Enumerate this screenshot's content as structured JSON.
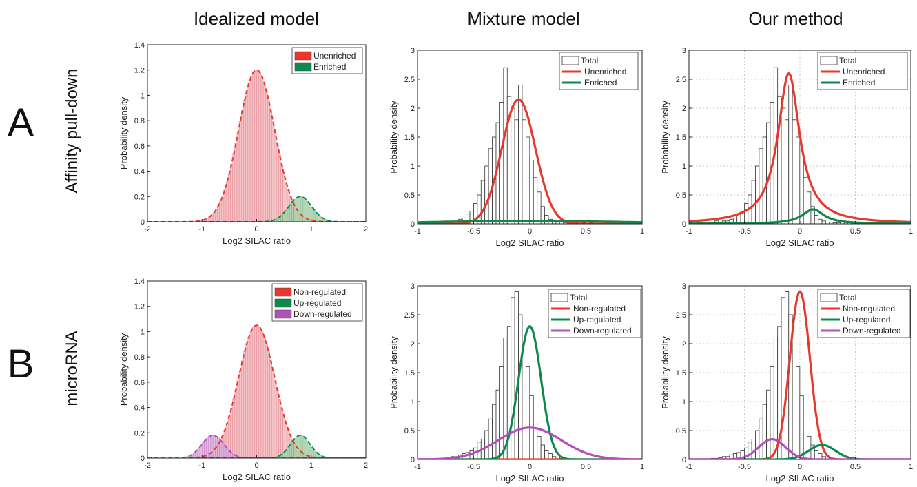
{
  "figure": {
    "column_titles": [
      "Idealized model",
      "Mixture model",
      "Our method"
    ],
    "row_letters": [
      "A",
      "B"
    ],
    "row_labels": [
      "Affinity pull-down",
      "microRNA"
    ]
  },
  "colors": {
    "red": "#e8372c",
    "green": "#0d8a4b",
    "purple": "#b34fb8",
    "red_fill": "#f2b9bd",
    "green_fill": "#a7cfaa",
    "purple_fill": "#dcb3dc"
  },
  "chart_data": [
    {
      "id": "A-idealized",
      "type": "bar",
      "style": "idealized",
      "xlabel": "Log2 SILAC ratio",
      "ylabel": "Probability density",
      "xlim": [
        -2,
        2
      ],
      "ylim": [
        0,
        1.4
      ],
      "xticks": [
        -2,
        -1,
        0,
        1,
        2
      ],
      "yticks": [
        0,
        0.2,
        0.4,
        0.6,
        0.8,
        1,
        1.2,
        1.4
      ],
      "ytick_labels": [
        "0",
        "0.2",
        "0.4",
        "0.6",
        "0.8",
        "1",
        "1.2",
        "1.4"
      ],
      "grid": false,
      "legend": "top-right",
      "components": [
        {
          "name": "Unenriched",
          "color": "red",
          "mu": 0.0,
          "sigma": 0.33,
          "peak": 1.2
        },
        {
          "name": "Enriched",
          "color": "green",
          "mu": 0.8,
          "sigma": 0.21,
          "peak": 0.2
        }
      ]
    },
    {
      "id": "A-mixture",
      "type": "line",
      "style": "fit",
      "xlabel": "Log2 SILAC ratio",
      "ylabel": "Probability density",
      "xlim": [
        -1,
        1
      ],
      "ylim": [
        0,
        3
      ],
      "xticks": [
        -1,
        -0.5,
        0,
        0.5,
        1
      ],
      "xtick_labels": [
        "-1",
        "-0.5",
        "0",
        "0.5",
        "1"
      ],
      "yticks": [
        0,
        0.5,
        1,
        1.5,
        2,
        2.5,
        3
      ],
      "ytick_labels": [
        "0",
        "0.5",
        "1",
        "1.5",
        "2",
        "2.5",
        "3"
      ],
      "grid": false,
      "legend": "top-right",
      "histogram": {
        "name": "Total",
        "start": -1,
        "width": 0.0333,
        "values": [
          0.02,
          0.0,
          0.02,
          0.02,
          0.0,
          0.02,
          0.0,
          0.05,
          0.02,
          0.05,
          0.05,
          0.08,
          0.1,
          0.17,
          0.22,
          0.35,
          0.5,
          0.75,
          1.0,
          1.3,
          1.5,
          1.75,
          2.1,
          2.7,
          2.2,
          2.0,
          1.8,
          2.4,
          1.8,
          1.5,
          1.1,
          0.8,
          0.55,
          0.3,
          0.15,
          0.08,
          0.05,
          0.03,
          0.0,
          0.02,
          0.02,
          0.0,
          0.02,
          0.0,
          0.02,
          0.0,
          0.02,
          0.0,
          0.03,
          0.0,
          0.03,
          0.0,
          0.0,
          0.0,
          0.0,
          0.0,
          0.0,
          0.0,
          0.0,
          0.0
        ]
      },
      "curves": [
        {
          "name": "Unenriched",
          "color": "red",
          "kind": "gauss",
          "mu": -0.1,
          "sigma": 0.15,
          "peak": 2.15
        },
        {
          "name": "Enriched",
          "color": "green",
          "kind": "gauss",
          "mu": 0.0,
          "sigma": 0.9,
          "peak": 0.05
        }
      ]
    },
    {
      "id": "A-ours",
      "type": "line",
      "style": "fit",
      "xlabel": "Log2 SILAC ratio",
      "ylabel": "Probability density",
      "xlim": [
        -1,
        1
      ],
      "ylim": [
        0,
        3
      ],
      "xticks": [
        -1,
        -0.5,
        0,
        0.5,
        1
      ],
      "xtick_labels": [
        "-1",
        "-0.5",
        "0",
        "0.5",
        "1"
      ],
      "yticks": [
        0,
        0.5,
        1,
        1.5,
        2,
        2.5,
        3
      ],
      "ytick_labels": [
        "0",
        "0.5",
        "1",
        "1.5",
        "2",
        "2.5",
        "3"
      ],
      "grid": true,
      "legend": "top-right",
      "histogram": {
        "name": "Total",
        "start": -1,
        "width": 0.0333,
        "values": [
          0.02,
          0.0,
          0.02,
          0.02,
          0.0,
          0.02,
          0.0,
          0.05,
          0.02,
          0.05,
          0.05,
          0.08,
          0.1,
          0.17,
          0.22,
          0.35,
          0.5,
          0.75,
          1.0,
          1.3,
          1.5,
          1.75,
          2.1,
          2.7,
          2.2,
          2.0,
          1.8,
          2.4,
          1.8,
          1.5,
          1.1,
          0.8,
          0.55,
          0.3,
          0.15,
          0.08,
          0.05,
          0.03,
          0.0,
          0.02,
          0.02,
          0.0,
          0.02,
          0.0,
          0.02,
          0.0,
          0.02,
          0.0,
          0.03,
          0.0,
          0.03,
          0.0,
          0.0,
          0.0,
          0.0,
          0.0,
          0.0,
          0.0,
          0.0,
          0.0
        ]
      },
      "curves": [
        {
          "name": "Unenriched",
          "color": "red",
          "kind": "cauchy",
          "mu": -0.1,
          "gamma": 0.12,
          "peak": 2.6
        },
        {
          "name": "Enriched",
          "color": "green",
          "kind": "cauchy",
          "mu": 0.12,
          "gamma": 0.12,
          "peak": 0.25
        }
      ]
    },
    {
      "id": "B-idealized",
      "type": "bar",
      "style": "idealized",
      "xlabel": "Log2 SILAC ratio",
      "ylabel": "Probability density",
      "xlim": [
        -2,
        2
      ],
      "ylim": [
        0,
        1.4
      ],
      "xticks": [
        -2,
        -1,
        0,
        1,
        2
      ],
      "yticks": [
        0,
        0.2,
        0.4,
        0.6,
        0.8,
        1,
        1.2,
        1.4
      ],
      "ytick_labels": [
        "0",
        "0.2",
        "0.4",
        "0.6",
        "0.8",
        "1",
        "1.2",
        "1.4"
      ],
      "grid": false,
      "legend": "top-right",
      "components": [
        {
          "name": "Non-regulated",
          "color": "red",
          "mu": 0.0,
          "sigma": 0.33,
          "peak": 1.05
        },
        {
          "name": "Up-regulated",
          "color": "green",
          "mu": 0.8,
          "sigma": 0.18,
          "peak": 0.18
        },
        {
          "name": "Down-regulated",
          "color": "purple",
          "mu": -0.8,
          "sigma": 0.2,
          "peak": 0.18
        }
      ]
    },
    {
      "id": "B-mixture",
      "type": "line",
      "style": "fit",
      "xlabel": "Log2 SILAC ratio",
      "ylabel": "Probability density",
      "xlim": [
        -1,
        1
      ],
      "ylim": [
        0,
        3
      ],
      "xticks": [
        -1,
        -0.5,
        0,
        0.5,
        1
      ],
      "xtick_labels": [
        "-1",
        "-0.5",
        "0",
        "0.5",
        "1"
      ],
      "yticks": [
        0,
        0.5,
        1,
        1.5,
        2,
        2.5,
        3
      ],
      "ytick_labels": [
        "0",
        "0.5",
        "1",
        "1.5",
        "2",
        "2.5",
        "3"
      ],
      "grid": false,
      "legend": "top-right",
      "histogram": {
        "name": "Total",
        "start": -1,
        "width": 0.0333,
        "values": [
          0.0,
          0.0,
          0.0,
          0.0,
          0.0,
          0.0,
          0.02,
          0.02,
          0.03,
          0.05,
          0.05,
          0.08,
          0.1,
          0.12,
          0.15,
          0.2,
          0.3,
          0.35,
          0.5,
          0.7,
          0.95,
          1.2,
          1.6,
          2.1,
          2.3,
          2.8,
          2.9,
          2.5,
          2.1,
          1.6,
          1.1,
          0.65,
          0.4,
          0.25,
          0.15,
          0.1,
          0.05,
          0.04,
          0.02,
          0.02,
          0.0,
          0.0,
          0.0,
          0.0,
          0.0,
          0.0,
          0.0,
          0.0,
          0.0,
          0.0,
          0.0,
          0.0,
          0.0,
          0.0,
          0.0,
          0.0,
          0.0,
          0.0,
          0.0,
          0.0
        ]
      },
      "curves": [
        {
          "name": "Non-regulated",
          "color": "red",
          "kind": "gauss",
          "mu": 0.0,
          "sigma": 0.9,
          "peak": 0.0
        },
        {
          "name": "Up-regulated",
          "color": "green",
          "kind": "gauss",
          "mu": 0.0,
          "sigma": 0.1,
          "peak": 2.3
        },
        {
          "name": "Down-regulated",
          "color": "purple",
          "kind": "gauss",
          "mu": 0.0,
          "sigma": 0.28,
          "peak": 0.55
        }
      ]
    },
    {
      "id": "B-ours",
      "type": "line",
      "style": "fit",
      "xlabel": "Log2 SILAC ratio",
      "ylabel": "Probability density",
      "xlim": [
        -1,
        1
      ],
      "ylim": [
        0,
        3
      ],
      "xticks": [
        -1,
        -0.5,
        0,
        0.5,
        1
      ],
      "xtick_labels": [
        "-1",
        "-0.5",
        "0",
        "0.5",
        "1"
      ],
      "yticks": [
        0,
        0.5,
        1,
        1.5,
        2,
        2.5,
        3
      ],
      "ytick_labels": [
        "0",
        "0.5",
        "1",
        "1.5",
        "2",
        "2.5",
        "3"
      ],
      "grid": true,
      "legend": "top-right",
      "histogram": {
        "name": "Total",
        "start": -1,
        "width": 0.0333,
        "values": [
          0.0,
          0.0,
          0.0,
          0.0,
          0.0,
          0.0,
          0.02,
          0.02,
          0.03,
          0.05,
          0.05,
          0.08,
          0.1,
          0.12,
          0.15,
          0.2,
          0.3,
          0.35,
          0.5,
          0.7,
          0.95,
          1.2,
          1.6,
          2.1,
          2.3,
          2.8,
          2.9,
          2.5,
          2.1,
          1.6,
          1.1,
          0.65,
          0.4,
          0.25,
          0.15,
          0.1,
          0.05,
          0.04,
          0.02,
          0.02,
          0.0,
          0.0,
          0.0,
          0.0,
          0.0,
          0.0,
          0.0,
          0.0,
          0.0,
          0.0,
          0.0,
          0.0,
          0.0,
          0.0,
          0.0,
          0.0,
          0.0,
          0.0,
          0.0,
          0.0
        ]
      },
      "curves": [
        {
          "name": "Non-regulated",
          "color": "red",
          "kind": "gauss",
          "mu": 0.0,
          "sigma": 0.09,
          "peak": 2.9
        },
        {
          "name": "Up-regulated",
          "color": "green",
          "kind": "gauss",
          "mu": 0.2,
          "sigma": 0.12,
          "peak": 0.25
        },
        {
          "name": "Down-regulated",
          "color": "purple",
          "kind": "gauss",
          "mu": -0.25,
          "sigma": 0.12,
          "peak": 0.35
        }
      ]
    }
  ]
}
